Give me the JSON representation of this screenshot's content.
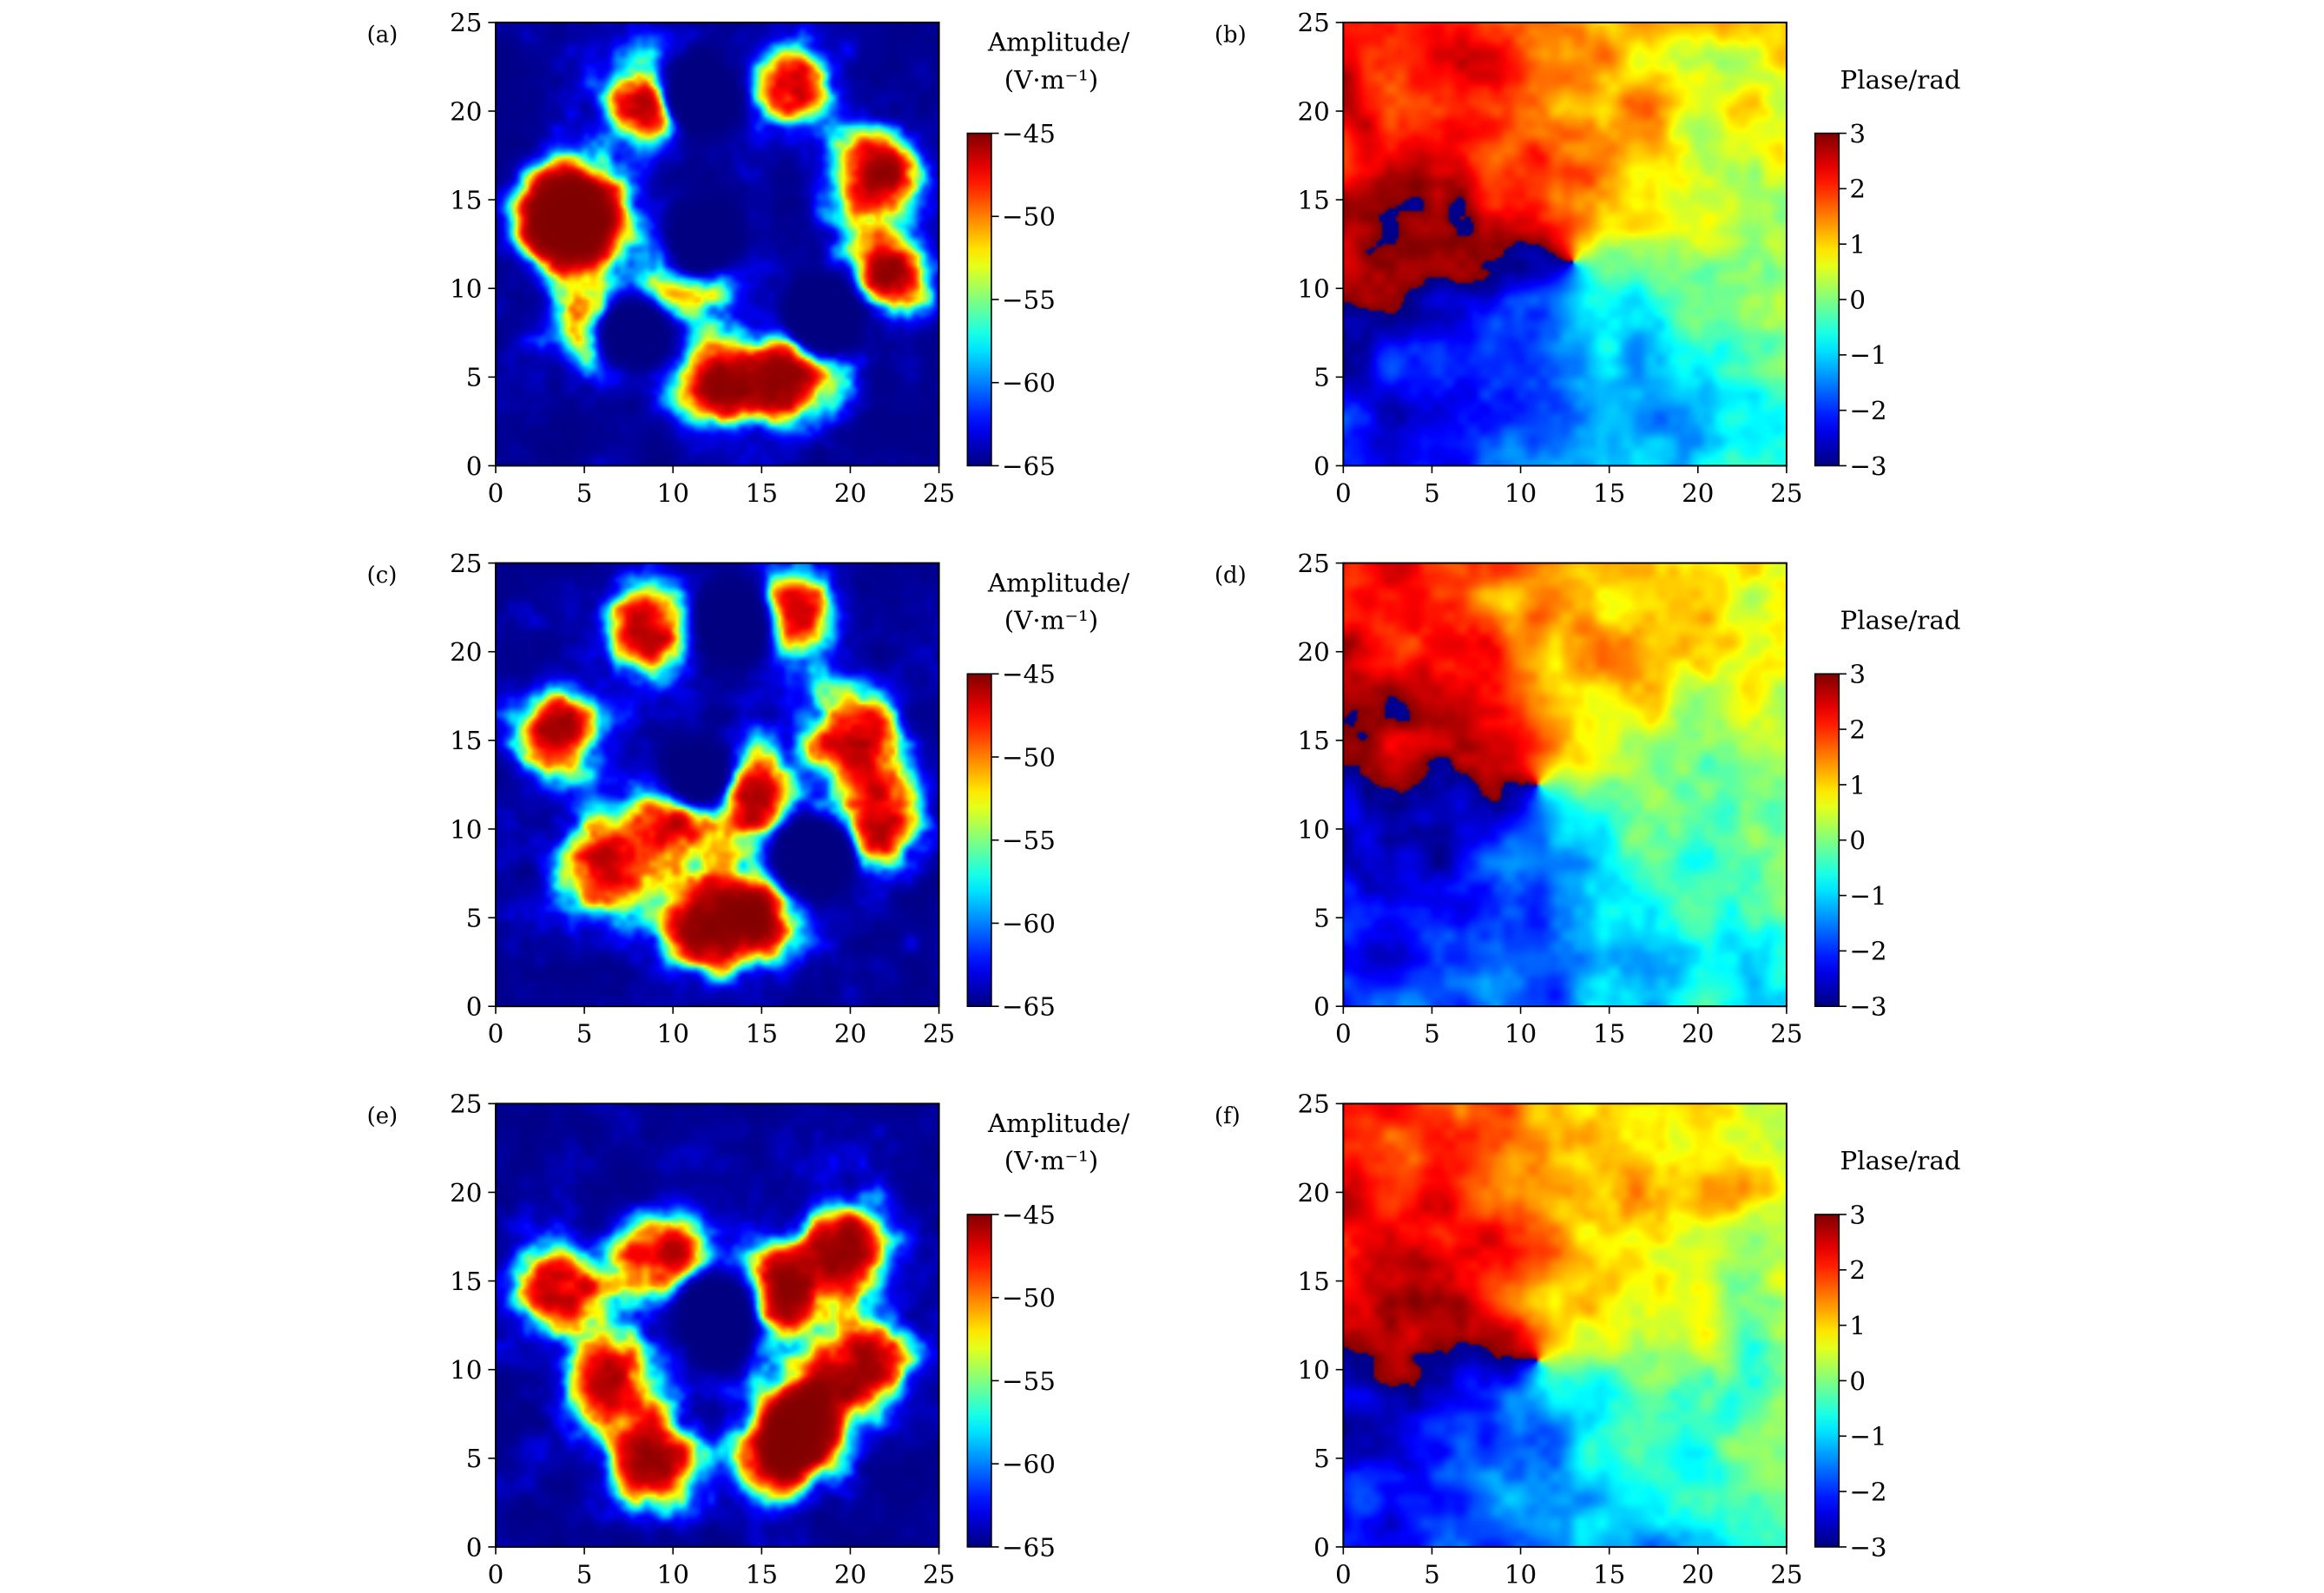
{
  "colors": {
    "colormap": "jet",
    "jet_stops": [
      "#00007f",
      "#0000ff",
      "#007fff",
      "#00ffff",
      "#7fff7f",
      "#ffff00",
      "#ff7f00",
      "#ff0000",
      "#7f0000"
    ]
  },
  "chart_data": [
    {
      "type": "heatmap",
      "panel_label": "(a)",
      "quantity": "amplitude",
      "x_ticks": [
        "0",
        "5",
        "10",
        "15",
        "20",
        "25"
      ],
      "y_ticks": [
        "0",
        "5",
        "10",
        "15",
        "20",
        "25"
      ],
      "xlim": [
        0,
        25
      ],
      "ylim": [
        0,
        25
      ],
      "colorbar": {
        "label_line1": "Amplitude/",
        "label_line2": "(V·m⁻¹)",
        "range": [
          -65,
          -45
        ],
        "ticks": [
          "−45",
          "−50",
          "−55",
          "−60",
          "−65"
        ]
      },
      "lobes": [
        [
          4,
          13.5
        ],
        [
          6,
          7.5
        ],
        [
          8.5,
          20.5
        ],
        [
          12.5,
          4.5
        ],
        [
          11,
          11
        ],
        [
          16.5,
          21.5
        ],
        [
          17,
          5
        ],
        [
          21.5,
          16.5
        ],
        [
          22,
          11
        ],
        [
          4.5,
          14.5
        ]
      ],
      "holes": [
        [
          11.5,
          12.5
        ],
        [
          7.5,
          7.5
        ],
        [
          18.5,
          8.5
        ],
        [
          11.5,
          21
        ]
      ]
    },
    {
      "type": "heatmap",
      "panel_label": "(b)",
      "quantity": "phase",
      "x_ticks": [
        "0",
        "5",
        "10",
        "15",
        "20",
        "25"
      ],
      "y_ticks": [
        "0",
        "5",
        "10",
        "15",
        "20",
        "25"
      ],
      "xlim": [
        0,
        25
      ],
      "ylim": [
        0,
        25
      ],
      "colorbar": {
        "label_line1": "Plase/rad",
        "range": [
          -3,
          3
        ],
        "ticks": [
          "3",
          "2",
          "1",
          "0",
          "−1",
          "−2",
          "−3"
        ]
      },
      "vortex_center": [
        13,
        11.5
      ]
    },
    {
      "type": "heatmap",
      "panel_label": "(c)",
      "quantity": "amplitude",
      "x_ticks": [
        "0",
        "5",
        "10",
        "15",
        "20",
        "25"
      ],
      "y_ticks": [
        "0",
        "5",
        "10",
        "15",
        "20",
        "25"
      ],
      "xlim": [
        0,
        25
      ],
      "ylim": [
        0,
        25
      ],
      "colorbar": {
        "label_line1": "Amplitude/",
        "label_line2": "(V·m⁻¹)",
        "range": [
          -65,
          -45
        ],
        "ticks": [
          "−45",
          "−50",
          "−55",
          "−60",
          "−65"
        ]
      },
      "lobes": [
        [
          3.5,
          15.5
        ],
        [
          6,
          8
        ],
        [
          8.5,
          21.5
        ],
        [
          11.5,
          4.5
        ],
        [
          15,
          5
        ],
        [
          16.5,
          22
        ],
        [
          20,
          15.5
        ],
        [
          21.5,
          10.5
        ],
        [
          10,
          11
        ],
        [
          14.5,
          12
        ]
      ],
      "holes": [
        [
          11.5,
          13
        ],
        [
          18,
          8.5
        ],
        [
          13.5,
          21.5
        ]
      ]
    },
    {
      "type": "heatmap",
      "panel_label": "(d)",
      "quantity": "phase",
      "x_ticks": [
        "0",
        "5",
        "10",
        "15",
        "20",
        "25"
      ],
      "y_ticks": [
        "0",
        "5",
        "10",
        "15",
        "20",
        "25"
      ],
      "xlim": [
        0,
        25
      ],
      "ylim": [
        0,
        25
      ],
      "colorbar": {
        "label_line1": "Plase/rad",
        "range": [
          -3,
          3
        ],
        "ticks": [
          "3",
          "2",
          "1",
          "0",
          "−1",
          "−2",
          "−3"
        ]
      },
      "vortex_center": [
        11,
        12.5
      ]
    },
    {
      "type": "heatmap",
      "panel_label": "(e)",
      "quantity": "amplitude",
      "x_ticks": [
        "0",
        "5",
        "10",
        "15",
        "20",
        "25"
      ],
      "y_ticks": [
        "0",
        "5",
        "10",
        "15",
        "20",
        "25"
      ],
      "xlim": [
        0,
        25
      ],
      "ylim": [
        0,
        25
      ],
      "colorbar": {
        "label_line1": "Amplitude/",
        "label_line2": "(V·m⁻¹)",
        "range": [
          -65,
          -45
        ],
        "ticks": [
          "−45",
          "−50",
          "−55",
          "−60",
          "−65"
        ]
      },
      "lobes": [
        [
          3.5,
          14.5
        ],
        [
          6.5,
          9
        ],
        [
          9,
          4.5
        ],
        [
          16,
          5
        ],
        [
          17.5,
          7.5
        ],
        [
          20,
          17
        ],
        [
          21,
          10.5
        ],
        [
          9.5,
          16.5
        ],
        [
          16,
          14.5
        ]
      ],
      "holes": [
        [
          12.5,
          13
        ]
      ]
    },
    {
      "type": "heatmap",
      "panel_label": "(f)",
      "quantity": "phase",
      "x_ticks": [
        "0",
        "5",
        "10",
        "15",
        "20",
        "25"
      ],
      "y_ticks": [
        "0",
        "5",
        "10",
        "15",
        "20",
        "25"
      ],
      "xlim": [
        0,
        25
      ],
      "ylim": [
        0,
        25
      ],
      "colorbar": {
        "label_line1": "Plase/rad",
        "range": [
          -3,
          3
        ],
        "ticks": [
          "3",
          "2",
          "1",
          "0",
          "−1",
          "−2",
          "−3"
        ]
      },
      "vortex_center": [
        11,
        10.5
      ]
    }
  ]
}
